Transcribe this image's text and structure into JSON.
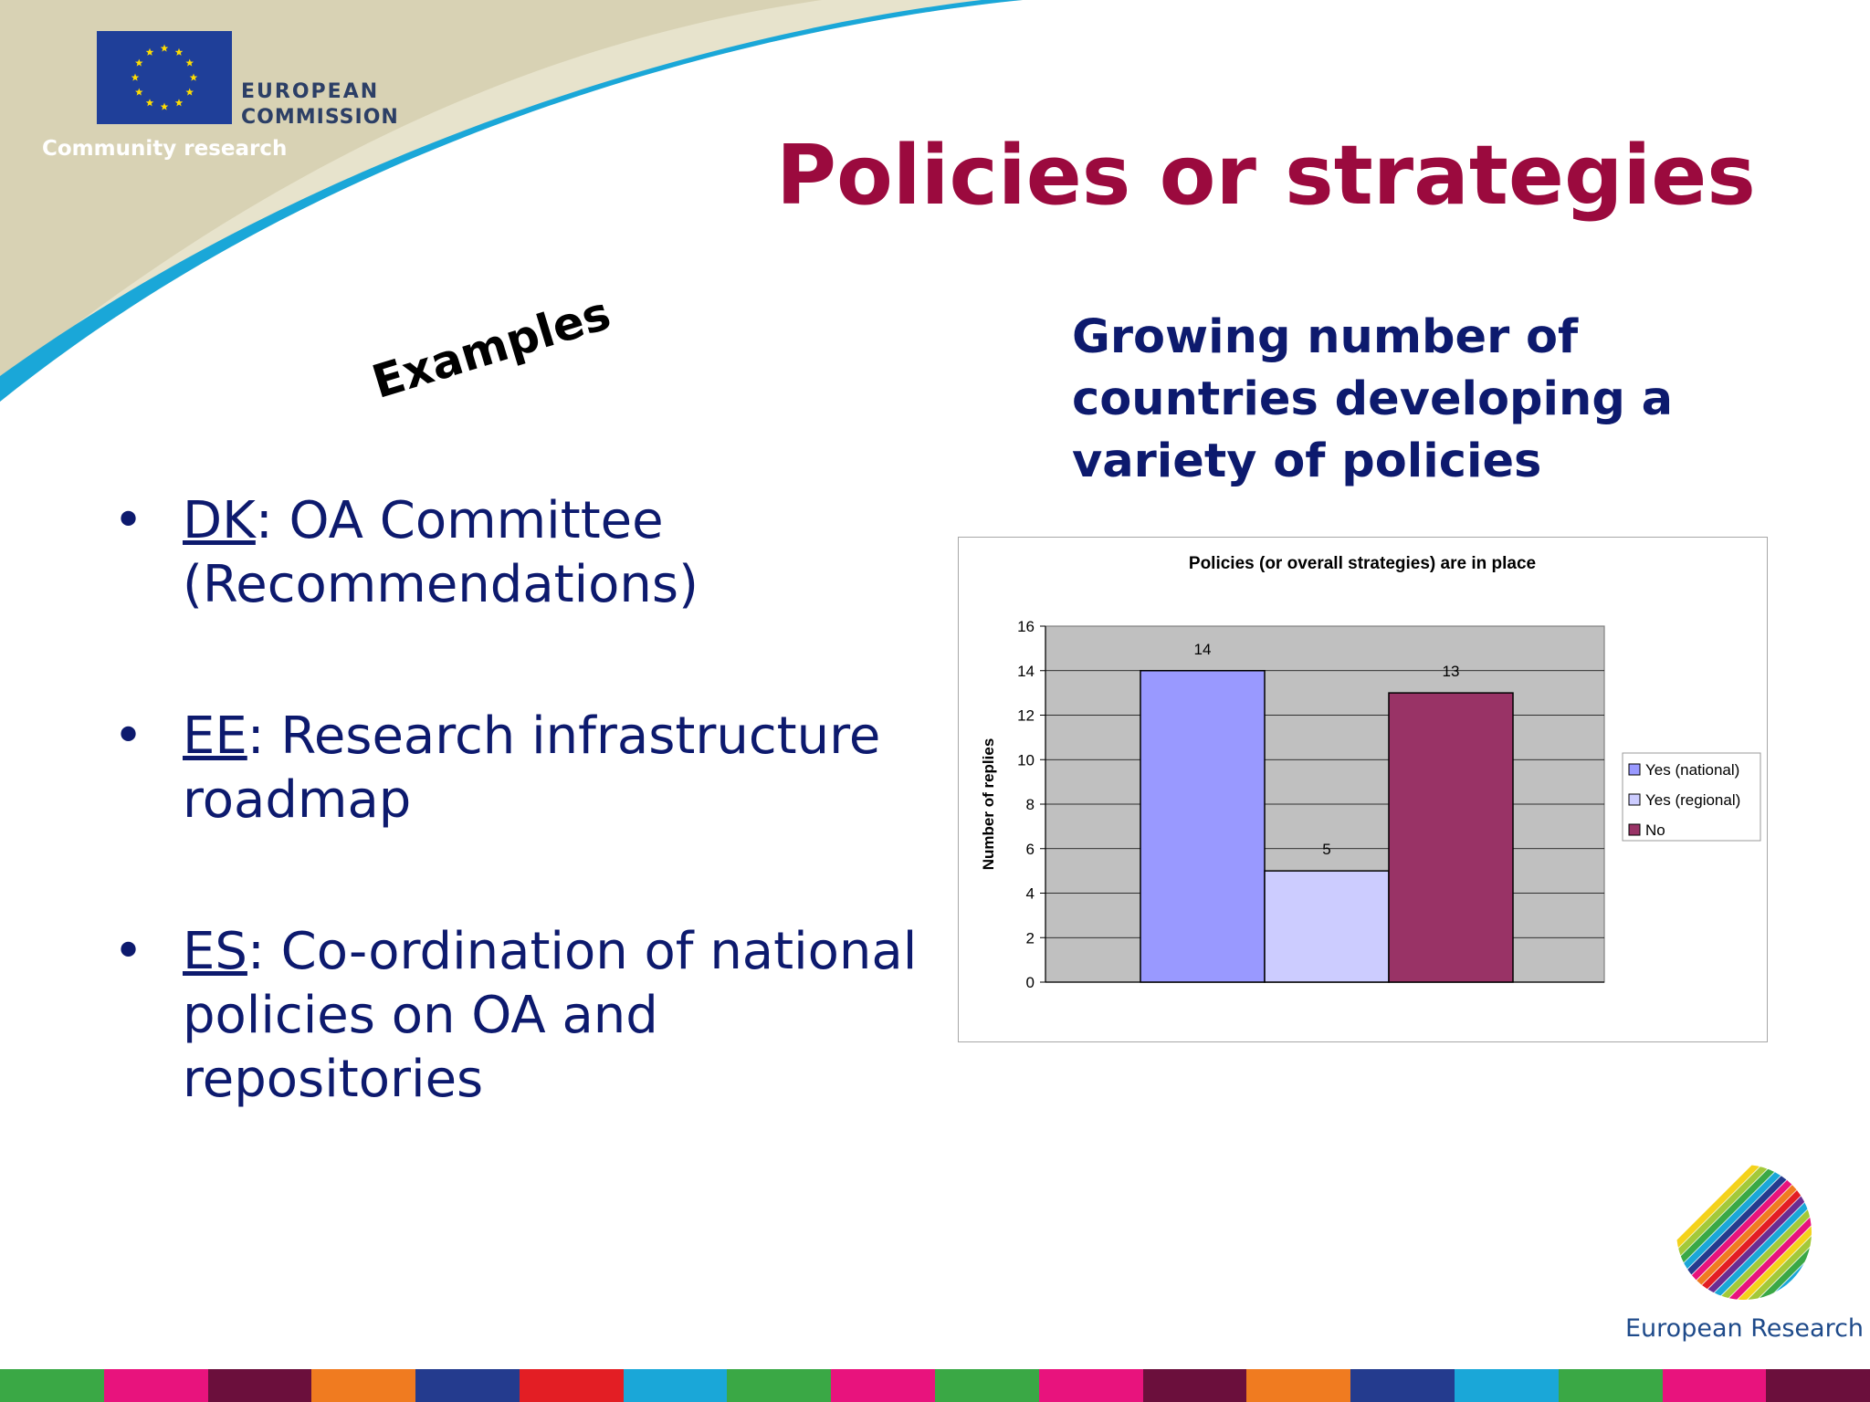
{
  "header": {
    "logo_line1": "EUROPEAN",
    "logo_line2": "COMMISSION",
    "community": "Community research",
    "title": "Policies or strategies"
  },
  "left": {
    "examples_label": "Examples",
    "bullets": [
      {
        "code": "DK",
        "text": ": OA Committee (Recommendations)"
      },
      {
        "code": "EE",
        "text": ": Research infrastructure roadmap"
      },
      {
        "code": "ES",
        "text": ": Co-ordination of national policies on OA and repositories"
      }
    ]
  },
  "right": {
    "subtitle": "Growing number of countries developing a variety of policies"
  },
  "footer": {
    "era_label": "European Research Area",
    "stripe_colors": [
      "#3aa845",
      "#e8137d",
      "#6b0f3c",
      "#f07b20",
      "#243b8e",
      "#e31e24",
      "#1aa7d8",
      "#3aa845",
      "#e8137d",
      "#3aa845",
      "#e8137d",
      "#6b0f3c",
      "#f07b20",
      "#243b8e",
      "#1aa7d8",
      "#3aa845",
      "#e8137d",
      "#6b0f3c"
    ]
  },
  "chart_data": {
    "type": "bar",
    "title": "Policies (or overall strategies) are in place",
    "ylabel": "Number of replies",
    "xlabel": "",
    "ylim": [
      0,
      16
    ],
    "yticks": [
      0,
      2,
      4,
      6,
      8,
      10,
      12,
      14,
      16
    ],
    "grid": true,
    "legend_position": "right",
    "plot_background": "#c0c0c0",
    "series": [
      {
        "name": "Yes (national)",
        "value": 14,
        "color": "#9999ff"
      },
      {
        "name": "Yes (regional)",
        "value": 5,
        "color": "#ccccff"
      },
      {
        "name": "No",
        "value": 13,
        "color": "#993366"
      }
    ]
  }
}
